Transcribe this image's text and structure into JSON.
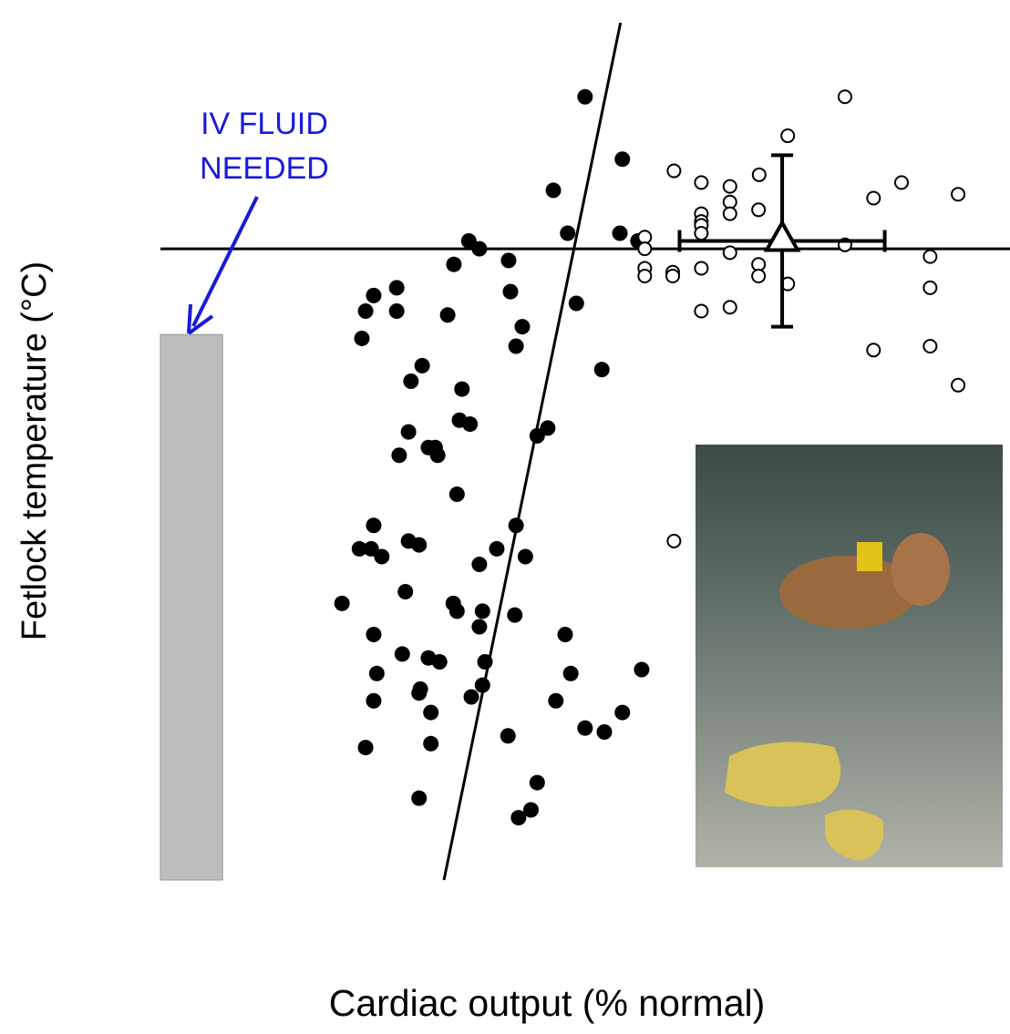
{
  "chart_data": {
    "type": "scatter",
    "xlabel": "Cardiac output (% normal)",
    "ylabel": "Fetlock temperature (°C)",
    "xlim": [
      0,
      136.5
    ],
    "ylim": [
      18,
      40
    ],
    "xticks": [
      0,
      20,
      40,
      60,
      80,
      100,
      120
    ],
    "yticks": [
      18,
      20,
      22,
      24,
      26,
      28,
      30,
      32,
      34,
      36,
      38,
      40
    ],
    "grid": true,
    "series": [
      {
        "color": "#000000",
        "fill": "filled",
        "x": [
          68.3,
          74.3,
          63.2,
          65.5,
          73.9,
          76.8,
          49.6,
          51.3,
          56.0,
          47.2,
          56.3,
          38.0,
          34.3,
          33.0,
          38.0,
          66.9,
          46.2,
          58.2,
          32.4,
          57.2,
          42.1,
          71.0,
          40.3,
          48.5,
          48.1,
          49.8,
          62.3,
          60.6,
          39.9,
          43.1,
          44.2,
          44.6,
          38.4,
          47.7,
          34.3,
          57.2,
          39.9,
          41.6,
          54.1,
          32.0,
          33.9,
          35.6,
          58.7,
          51.3,
          39.4,
          29.2,
          47.1,
          47.7,
          51.8,
          57.0,
          51.3,
          34.3,
          65.1,
          38.9,
          77.4,
          43.1,
          44.9,
          52.2,
          34.8,
          66.0,
          51.8,
          41.8,
          41.6,
          50.0,
          34.3,
          63.6,
          43.5,
          74.3,
          68.3,
          71.4,
          55.9,
          43.5,
          33.0,
          41.6,
          60.6,
          59.6,
          57.6
        ],
        "values": [
          38.1,
          36.5,
          35.7,
          34.6,
          34.6,
          34.4,
          34.4,
          34.2,
          33.9,
          33.8,
          33.1,
          33.2,
          33.0,
          32.6,
          32.6,
          32.8,
          32.5,
          32.2,
          31.9,
          31.7,
          31.2,
          31.1,
          30.8,
          30.6,
          29.8,
          29.7,
          29.6,
          29.4,
          29.5,
          29.1,
          29.1,
          28.9,
          28.9,
          27.9,
          27.1,
          27.1,
          26.7,
          26.6,
          26.5,
          26.5,
          26.5,
          26.3,
          26.3,
          26.1,
          25.4,
          25.1,
          25.1,
          24.9,
          24.9,
          24.8,
          24.5,
          24.3,
          24.3,
          23.8,
          23.4,
          23.7,
          23.6,
          23.6,
          23.3,
          23.3,
          23.0,
          22.9,
          22.8,
          22.7,
          22.6,
          22.6,
          22.3,
          22.3,
          21.9,
          21.8,
          21.7,
          21.5,
          21.4,
          20.1,
          20.5,
          19.8,
          19.6
        ]
      },
      {
        "color": "#000000",
        "fill": "open",
        "x": [
          110.1,
          100.9,
          82.6,
          96.3,
          119.2,
          87.0,
          91.6,
          128.3,
          114.7,
          91.6,
          96.2,
          87.0,
          91.6,
          87.0,
          87.0,
          87.0,
          77.9,
          77.9,
          110.1,
          91.6,
          123.8,
          96.2,
          77.9,
          87.0,
          82.4,
          77.9,
          82.4,
          96.2,
          100.9,
          123.8,
          91.6,
          87.0,
          123.8,
          114.7,
          128.3,
          82.6
        ],
        "values": [
          38.1,
          37.1,
          36.2,
          36.1,
          35.9,
          35.9,
          35.8,
          35.6,
          35.5,
          35.4,
          35.2,
          35.1,
          35.1,
          34.9,
          34.8,
          34.6,
          34.5,
          34.2,
          34.3,
          34.1,
          34.0,
          33.8,
          33.7,
          33.7,
          33.6,
          33.5,
          33.5,
          33.5,
          33.3,
          33.2,
          32.7,
          32.6,
          31.7,
          31.6,
          30.7,
          26.7
        ]
      }
    ],
    "mean": {
      "x": 100,
      "y": 34.4,
      "xerr": 16.5,
      "yerr": 2.2
    },
    "hline": 34.2,
    "fit_line": {
      "x": [
        45.6,
        74.0
      ],
      "y": [
        18,
        40
      ]
    },
    "shaded_region": {
      "x": [
        0,
        10
      ],
      "y": [
        18,
        32
      ],
      "color": "#bdbdbd"
    },
    "annotation": {
      "lines": [
        "IV FLUID",
        "NEEDED"
      ],
      "color": "#1a1adb"
    }
  }
}
